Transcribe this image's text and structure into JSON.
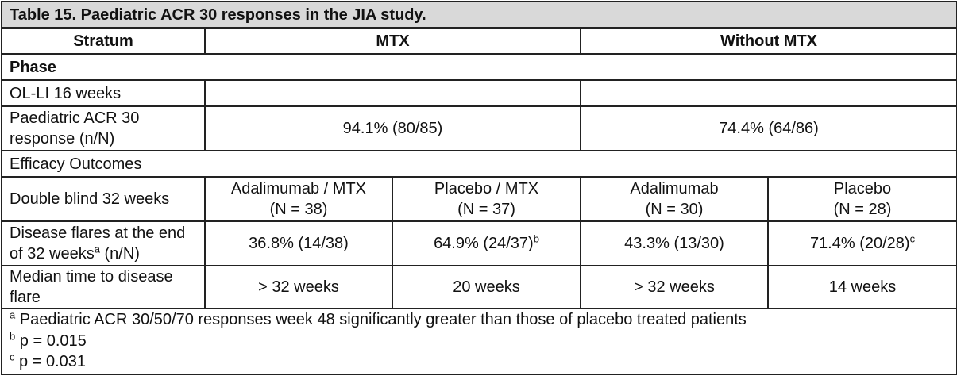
{
  "caption": "Table 15. Paediatric ACR 30 responses in the JIA study.",
  "headers": {
    "stratum": "Stratum",
    "mtx": "MTX",
    "without_mtx": "Without MTX"
  },
  "phase_label": "Phase",
  "ol_li": {
    "label": "OL-LI 16 weeks"
  },
  "acr_response": {
    "label": "Paediatric ACR 30 response (n/N)",
    "mtx": "94.1% (80/85)",
    "without_mtx": "74.4% (64/86)"
  },
  "efficacy_label": "Efficacy Outcomes",
  "double_blind": {
    "label": "Double blind 32 weeks",
    "columns": [
      {
        "line1": "Adalimumab / MTX",
        "line2": "(N = 38)"
      },
      {
        "line1": "Placebo / MTX",
        "line2": "(N = 37)"
      },
      {
        "line1": "Adalimumab",
        "line2": "(N = 30)"
      },
      {
        "line1": "Placebo",
        "line2": "(N = 28)"
      }
    ]
  },
  "disease_flares": {
    "label": "Disease flares at the end of 32 weeks",
    "label_sup": "a",
    "label_suffix": " (n/N)",
    "values": [
      {
        "text": "36.8% (14/38)",
        "sup": ""
      },
      {
        "text": "64.9% (24/37)",
        "sup": "b"
      },
      {
        "text": "43.3% (13/30)",
        "sup": ""
      },
      {
        "text": "71.4% (20/28)",
        "sup": "c"
      }
    ]
  },
  "median_time": {
    "label": "Median time to disease flare",
    "values": [
      "> 32 weeks",
      "20 weeks",
      "> 32 weeks",
      "14 weeks"
    ]
  },
  "footnotes": [
    {
      "mark": "a",
      "text": " Paediatric ACR 30/50/70 responses week 48 significantly greater than those of placebo treated patients"
    },
    {
      "mark": "b",
      "text": " p = 0.015"
    },
    {
      "mark": "c",
      "text": " p = 0.031"
    }
  ]
}
